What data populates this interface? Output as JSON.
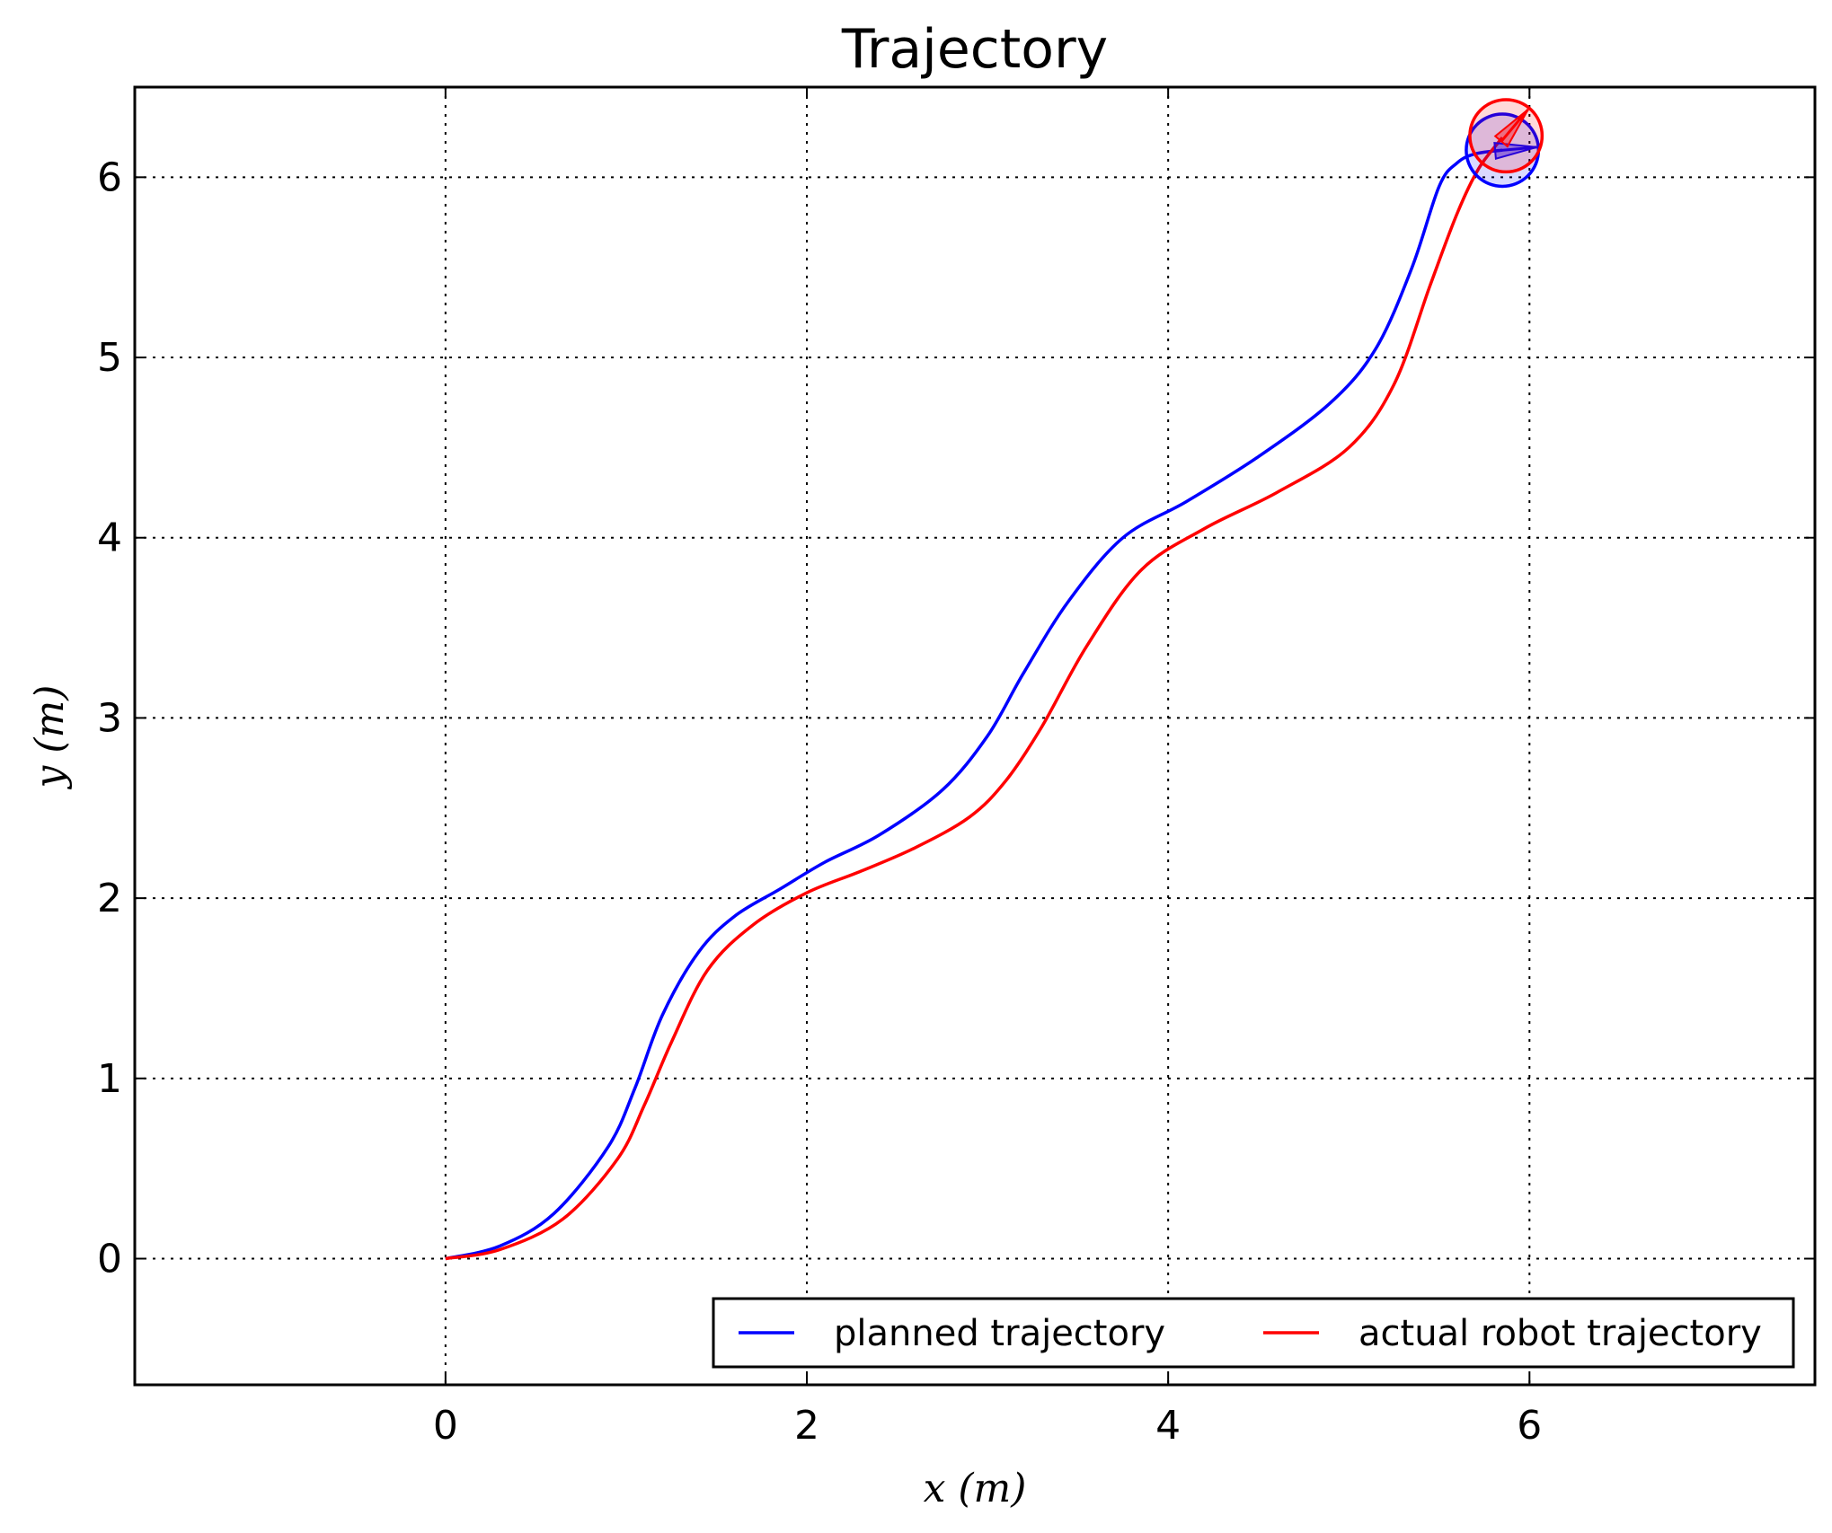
{
  "chart_data": {
    "type": "line",
    "title": "Trajectory",
    "xlabel": "x (m)",
    "ylabel": "y (m)",
    "xlim": [
      -1.72,
      7.58
    ],
    "ylim": [
      -0.7,
      6.5
    ],
    "xticks": [
      0,
      2,
      4,
      6
    ],
    "yticks": [
      0,
      1,
      2,
      3,
      4,
      5,
      6
    ],
    "grid": true,
    "legend_position": "lower-right",
    "series": [
      {
        "name": "planned trajectory",
        "color": "#0000ff",
        "x": [
          0,
          0.3,
          0.6,
          0.9,
          1.05,
          1.2,
          1.4,
          1.6,
          1.85,
          2.1,
          2.4,
          2.75,
          3.0,
          3.2,
          3.45,
          3.75,
          4.1,
          4.5,
          4.9,
          5.15,
          5.35,
          5.5,
          5.6,
          5.7,
          5.85
        ],
        "y": [
          0,
          0.07,
          0.25,
          0.62,
          0.95,
          1.35,
          1.7,
          1.9,
          2.05,
          2.2,
          2.35,
          2.6,
          2.9,
          3.25,
          3.65,
          4.0,
          4.2,
          4.45,
          4.75,
          5.05,
          5.5,
          5.95,
          6.08,
          6.13,
          6.15
        ]
      },
      {
        "name": "actual robot trajectory",
        "color": "#ff0000",
        "x": [
          0,
          0.3,
          0.65,
          0.95,
          1.1,
          1.25,
          1.45,
          1.7,
          2.0,
          2.3,
          2.6,
          2.9,
          3.1,
          3.3,
          3.55,
          3.85,
          4.2,
          4.6,
          5.0,
          5.25,
          5.45,
          5.6,
          5.72,
          5.85
        ],
        "y": [
          0,
          0.05,
          0.22,
          0.55,
          0.85,
          1.2,
          1.6,
          1.85,
          2.03,
          2.15,
          2.28,
          2.45,
          2.65,
          2.95,
          3.4,
          3.82,
          4.05,
          4.25,
          4.5,
          4.85,
          5.4,
          5.8,
          6.05,
          6.22
        ]
      }
    ],
    "markers": [
      {
        "series": "planned trajectory",
        "x": 5.85,
        "y": 6.15,
        "radius": 0.2,
        "heading_deg": 5,
        "color": "#0000ff"
      },
      {
        "series": "actual robot trajectory",
        "x": 5.87,
        "y": 6.23,
        "radius": 0.2,
        "heading_deg": 50,
        "color": "#ff0000"
      }
    ]
  }
}
